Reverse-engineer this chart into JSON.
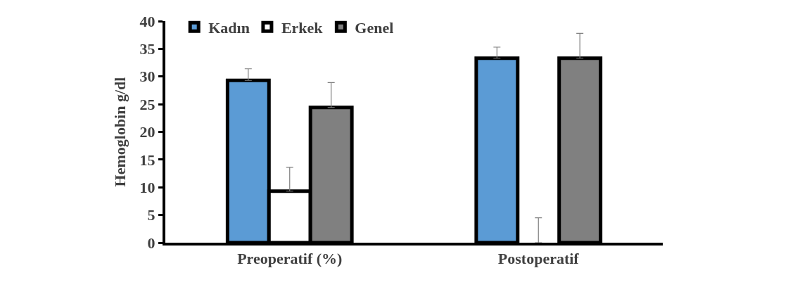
{
  "chart_data": {
    "type": "bar",
    "ylabel": "Hemoglobin g/dl",
    "categories": [
      "Preoperatif (%)",
      "Postoperatif"
    ],
    "series": [
      {
        "name": "Kadın",
        "color": "#5b9bd5",
        "values": [
          29.3,
          33.3
        ],
        "errors": [
          [
            29.3,
            31.4
          ],
          [
            33.3,
            35.3
          ]
        ]
      },
      {
        "name": "Erkek",
        "color": "#ffffff",
        "values": [
          9.3,
          0
        ],
        "errors": [
          [
            9.3,
            13.6
          ],
          [
            0,
            4.5
          ]
        ]
      },
      {
        "name": "Genel",
        "color": "#808080",
        "values": [
          24.4,
          33.3
        ],
        "errors": [
          [
            24.4,
            28.9
          ],
          [
            33.3,
            37.8
          ]
        ]
      }
    ],
    "ylim": [
      0,
      40
    ],
    "yticks": [
      0,
      5,
      10,
      15,
      20,
      25,
      30,
      35,
      40
    ],
    "grid": false,
    "legend": "top left"
  }
}
